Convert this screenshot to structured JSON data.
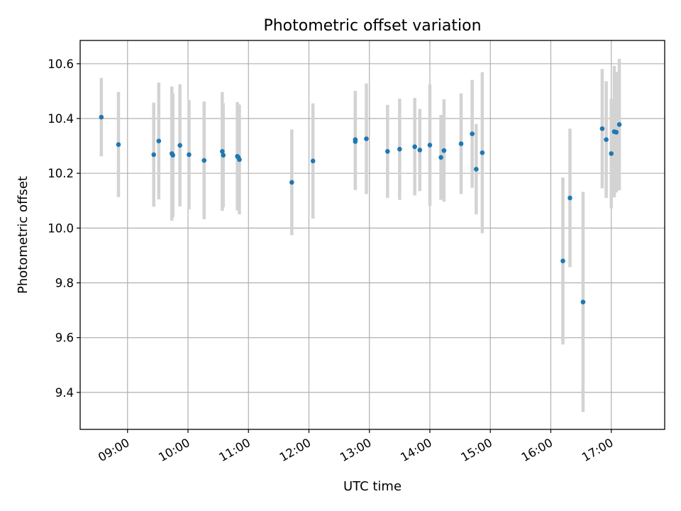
{
  "chart_data": {
    "type": "scatter",
    "title": "Photometric offset variation",
    "xlabel": "UTC time",
    "ylabel": "Photometric offset",
    "x_ticks": [
      "09:00",
      "10:00",
      "11:00",
      "12:00",
      "13:00",
      "14:00",
      "15:00",
      "16:00",
      "17:00"
    ],
    "y_ticks": [
      "9.4",
      "9.6",
      "9.8",
      "10.0",
      "10.2",
      "10.4",
      "10.6"
    ],
    "xlim": [
      "08:13",
      "17:53"
    ],
    "ylim": [
      9.265,
      10.685
    ],
    "grid": true,
    "colors": {
      "marker": "#1f77b4",
      "errorbar": "#d3d3d3",
      "grid": "#b0b0b0"
    },
    "points": [
      {
        "t": "08:34",
        "y": 10.405,
        "err": 0.143
      },
      {
        "t": "08:51",
        "y": 10.305,
        "err": 0.192
      },
      {
        "t": "09:26",
        "y": 10.268,
        "err": 0.19
      },
      {
        "t": "09:31",
        "y": 10.318,
        "err": 0.213
      },
      {
        "t": "09:44",
        "y": 10.272,
        "err": 0.245
      },
      {
        "t": "09:45",
        "y": 10.266,
        "err": 0.226
      },
      {
        "t": "09:52",
        "y": 10.302,
        "err": 0.223
      },
      {
        "t": "10:01",
        "y": 10.268,
        "err": 0.2
      },
      {
        "t": "10:16",
        "y": 10.247,
        "err": 0.215
      },
      {
        "t": "10:34",
        "y": 10.28,
        "err": 0.217
      },
      {
        "t": "10:35",
        "y": 10.266,
        "err": 0.19
      },
      {
        "t": "10:49",
        "y": 10.262,
        "err": 0.198
      },
      {
        "t": "10:50",
        "y": 10.258,
        "err": 0.194
      },
      {
        "t": "10:51",
        "y": 10.25,
        "err": 0.2
      },
      {
        "t": "11:43",
        "y": 10.167,
        "err": 0.193
      },
      {
        "t": "12:04",
        "y": 10.245,
        "err": 0.21
      },
      {
        "t": "12:46",
        "y": 10.323,
        "err": 0.178
      },
      {
        "t": "12:46",
        "y": 10.316,
        "err": 0.177
      },
      {
        "t": "12:57",
        "y": 10.326,
        "err": 0.202
      },
      {
        "t": "13:18",
        "y": 10.28,
        "err": 0.17
      },
      {
        "t": "13:30",
        "y": 10.288,
        "err": 0.185
      },
      {
        "t": "13:45",
        "y": 10.297,
        "err": 0.178
      },
      {
        "t": "13:50",
        "y": 10.285,
        "err": 0.15
      },
      {
        "t": "14:00",
        "y": 10.303,
        "err": 0.222
      },
      {
        "t": "14:11",
        "y": 10.258,
        "err": 0.155
      },
      {
        "t": "14:14",
        "y": 10.283,
        "err": 0.187
      },
      {
        "t": "14:31",
        "y": 10.308,
        "err": 0.184
      },
      {
        "t": "14:42",
        "y": 10.344,
        "err": 0.197
      },
      {
        "t": "14:46",
        "y": 10.215,
        "err": 0.165
      },
      {
        "t": "14:52",
        "y": 10.275,
        "err": 0.294
      },
      {
        "t": "16:12",
        "y": 9.88,
        "err": 0.305
      },
      {
        "t": "16:19",
        "y": 10.11,
        "err": 0.253
      },
      {
        "t": "16:32",
        "y": 9.73,
        "err": 0.402
      },
      {
        "t": "16:51",
        "y": 10.363,
        "err": 0.218
      },
      {
        "t": "16:55",
        "y": 10.323,
        "err": 0.213
      },
      {
        "t": "17:00",
        "y": 10.272,
        "err": 0.2
      },
      {
        "t": "17:03",
        "y": 10.352,
        "err": 0.24
      },
      {
        "t": "17:05",
        "y": 10.35,
        "err": 0.22
      },
      {
        "t": "17:08",
        "y": 10.378,
        "err": 0.24
      }
    ]
  }
}
